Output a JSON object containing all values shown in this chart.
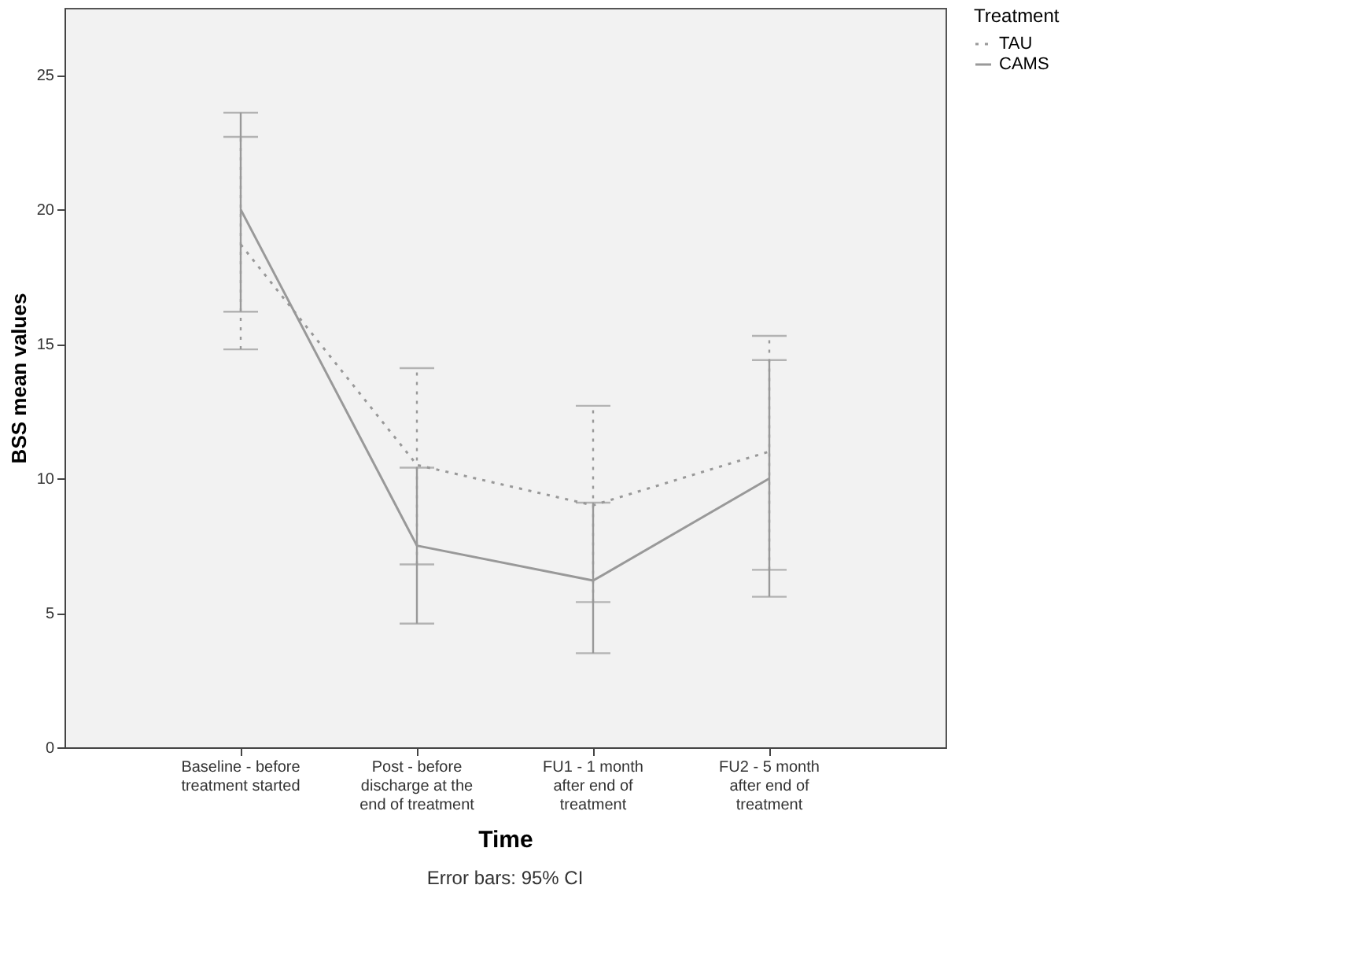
{
  "chart_data": {
    "type": "line",
    "xlabel": "Time",
    "ylabel": "BSS mean values",
    "legend_title": "Treatment",
    "legend": "top right",
    "categories": [
      "Baseline - before treatment started",
      "Post - before discharge at the end of treatment",
      "FU1 - 1 month after end of treatment",
      "FU2 - 5 month after end of treatment"
    ],
    "series": [
      {
        "name": "TAU",
        "color": "#999999",
        "line_style": "dotted",
        "values": [
          18.7,
          10.5,
          9.0,
          11.0
        ],
        "errors": [
          [
            14.8,
            22.7
          ],
          [
            6.8,
            14.1
          ],
          [
            5.4,
            12.7
          ],
          [
            6.6,
            15.3
          ]
        ]
      },
      {
        "name": "CAMS",
        "color": "#999999",
        "line_style": "solid",
        "values": [
          20.0,
          7.5,
          6.2,
          10.0
        ],
        "errors": [
          [
            16.2,
            23.6
          ],
          [
            4.6,
            10.4
          ],
          [
            3.5,
            9.1
          ],
          [
            5.6,
            14.4
          ]
        ]
      }
    ],
    "ylim": [
      0,
      27.5
    ],
    "yticks": [
      0,
      5,
      10,
      15,
      20,
      25
    ],
    "grid": false,
    "marker": "none",
    "annotations": [
      "Error bars: 95% CI"
    ]
  }
}
